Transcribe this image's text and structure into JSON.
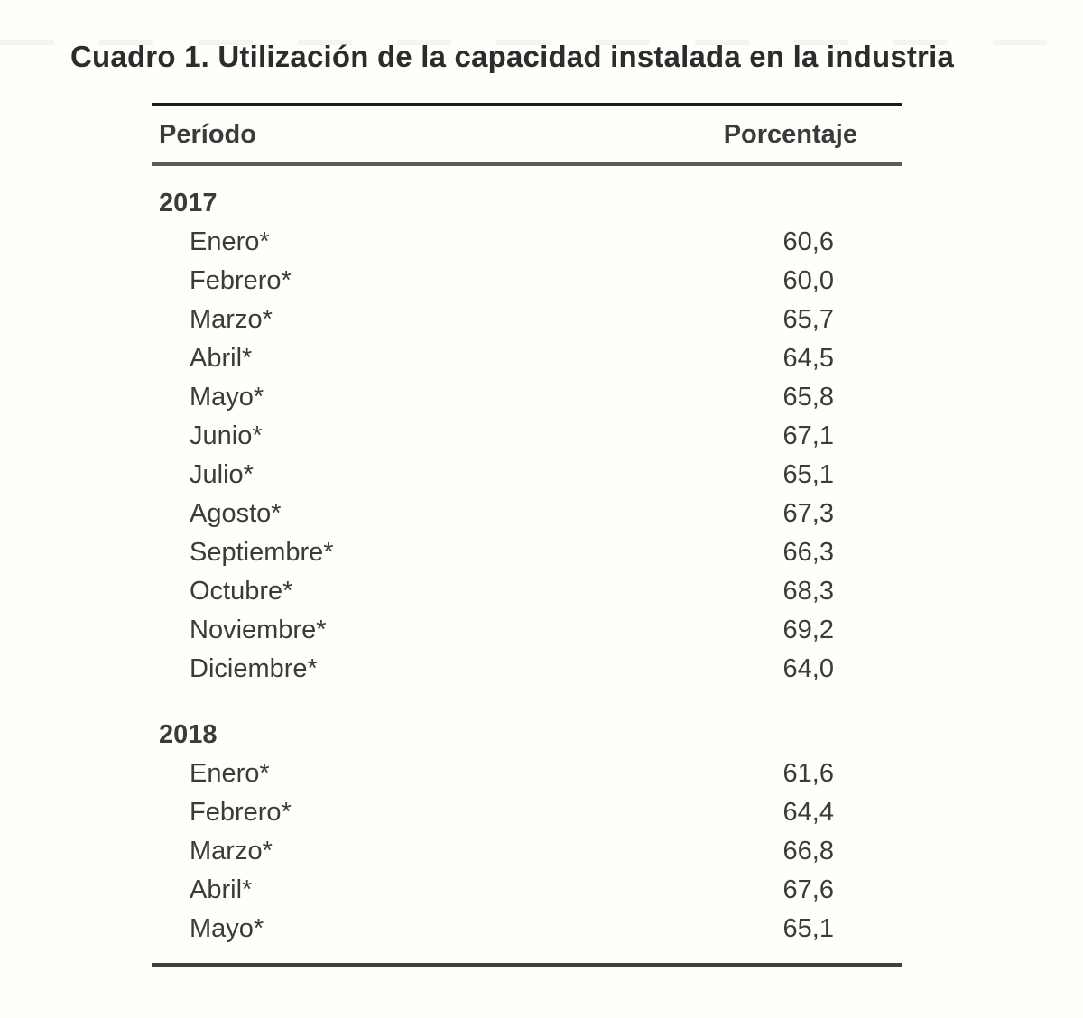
{
  "title": "Cuadro 1. Utilización de la capacidad instalada en la industria",
  "table": {
    "header": {
      "period": "Período",
      "percentage": "Porcentaje"
    },
    "sections": [
      {
        "year": "2017",
        "rows": [
          {
            "month": "Enero*",
            "value": "60,6"
          },
          {
            "month": "Febrero*",
            "value": "60,0"
          },
          {
            "month": "Marzo*",
            "value": "65,7"
          },
          {
            "month": "Abril*",
            "value": "64,5"
          },
          {
            "month": "Mayo*",
            "value": "65,8"
          },
          {
            "month": "Junio*",
            "value": "67,1"
          },
          {
            "month": "Julio*",
            "value": "65,1"
          },
          {
            "month": "Agosto*",
            "value": "67,3"
          },
          {
            "month": "Septiembre*",
            "value": "66,3"
          },
          {
            "month": "Octubre*",
            "value": "68,3"
          },
          {
            "month": "Noviembre*",
            "value": "69,2"
          },
          {
            "month": "Diciembre*",
            "value": "64,0"
          }
        ]
      },
      {
        "year": "2018",
        "rows": [
          {
            "month": "Enero*",
            "value": "61,6"
          },
          {
            "month": "Febrero*",
            "value": "64,4"
          },
          {
            "month": "Marzo*",
            "value": "66,8"
          },
          {
            "month": "Abril*",
            "value": "67,6"
          },
          {
            "month": "Mayo*",
            "value": "65,1"
          }
        ]
      }
    ]
  },
  "colors": {
    "background": "#fffefa",
    "title_text": "#2c2c2c",
    "body_text": "#3b3b3b",
    "rule_top": "#1c1c1c",
    "rule_header": "#5c5c5c",
    "rule_bottom": "#3f3f3f"
  }
}
